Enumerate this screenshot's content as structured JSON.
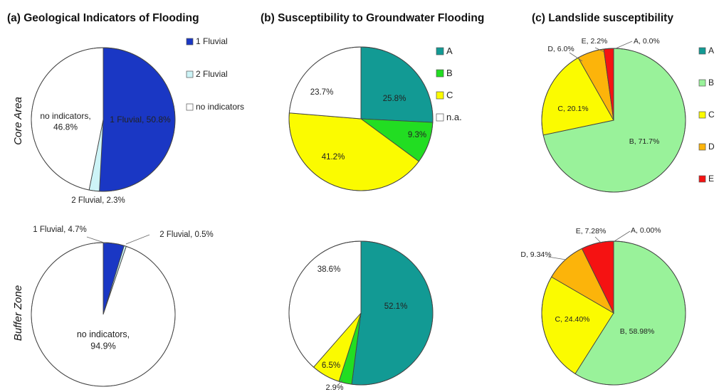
{
  "row_labels": [
    "Core Area",
    "Buffer Zone"
  ],
  "colors": {
    "fluvial1": "#1a37c4",
    "fluvial2": "#cdf4f7",
    "none": "#ffffff",
    "A": "#129a94",
    "B": "#22dd22",
    "C": "#fbfb00",
    "na": "#ffffff",
    "LA": "#129a94",
    "LB": "#99f29a",
    "LC": "#fbfb00",
    "LD": "#fcb40a",
    "LE": "#f51212"
  },
  "chart_data": [
    {
      "id": "a",
      "type": "pie",
      "title": "(a) Geological Indicators of Flooding",
      "legend": [
        "1 Fluvial",
        "2 Fluvial",
        "no indicators"
      ],
      "legend_position": "right",
      "pies": [
        {
          "row": "Core Area",
          "slices": [
            {
              "label": "1 Fluvial",
              "value": 50.8,
              "text": "1 Fluvial, 50.8%",
              "color": "#1a37c4"
            },
            {
              "label": "2 Fluvial",
              "value": 2.3,
              "text": "2 Fluvial, 2.3%",
              "color": "#cdf4f7"
            },
            {
              "label": "no indicators",
              "value": 46.8,
              "text": "no indicators, 46.8%",
              "color": "#ffffff"
            }
          ]
        },
        {
          "row": "Buffer Zone",
          "slices": [
            {
              "label": "1 Fluvial",
              "value": 4.7,
              "text": "1 Fluvial, 4.7%",
              "color": "#1a37c4"
            },
            {
              "label": "2 Fluvial",
              "value": 0.5,
              "text": "2 Fluvial, 0.5%",
              "color": "#cdf4f7"
            },
            {
              "label": "no indicators",
              "value": 94.9,
              "text": "no indicators, 94.9%",
              "color": "#ffffff"
            }
          ]
        }
      ]
    },
    {
      "id": "b",
      "type": "pie",
      "title": "(b) Susceptibility to Groundwater Flooding",
      "legend": [
        "A",
        "B",
        "C",
        "n.a."
      ],
      "legend_position": "right",
      "pies": [
        {
          "row": "Core Area",
          "slices": [
            {
              "label": "A",
              "value": 25.8,
              "text": "25.8%",
              "color": "#129a94"
            },
            {
              "label": "B",
              "value": 9.3,
              "text": "9.3%",
              "color": "#22dd22"
            },
            {
              "label": "C",
              "value": 41.2,
              "text": "41.2%",
              "color": "#fbfb00"
            },
            {
              "label": "n.a.",
              "value": 23.7,
              "text": "23.7%",
              "color": "#ffffff"
            }
          ]
        },
        {
          "row": "Buffer Zone",
          "slices": [
            {
              "label": "A",
              "value": 52.1,
              "text": "52.1%",
              "color": "#129a94"
            },
            {
              "label": "B",
              "value": 2.9,
              "text": "2.9%",
              "color": "#22dd22"
            },
            {
              "label": "C",
              "value": 6.5,
              "text": "6.5%",
              "color": "#fbfb00"
            },
            {
              "label": "n.a.",
              "value": 38.6,
              "text": "38.6%",
              "color": "#ffffff"
            }
          ]
        }
      ]
    },
    {
      "id": "c",
      "type": "pie",
      "title": "(c) Landslide susceptibility",
      "legend": [
        "A",
        "B",
        "C",
        "D",
        "E"
      ],
      "legend_position": "right",
      "pies": [
        {
          "row": "Core Area",
          "slices": [
            {
              "label": "A",
              "value": 0.0,
              "text": "A, 0.0%",
              "color": "#129a94"
            },
            {
              "label": "B",
              "value": 71.7,
              "text": "B, 71.7%",
              "color": "#99f29a"
            },
            {
              "label": "C",
              "value": 20.1,
              "text": "C, 20.1%",
              "color": "#fbfb00"
            },
            {
              "label": "D",
              "value": 6.0,
              "text": "D, 6.0%",
              "color": "#fcb40a"
            },
            {
              "label": "E",
              "value": 2.2,
              "text": "E, 2.2%",
              "color": "#f51212"
            }
          ]
        },
        {
          "row": "Buffer Zone",
          "slices": [
            {
              "label": "A",
              "value": 0.0,
              "text": "A, 0.00%",
              "color": "#129a94"
            },
            {
              "label": "B",
              "value": 58.98,
              "text": "B, 58.98%",
              "color": "#99f29a"
            },
            {
              "label": "C",
              "value": 24.4,
              "text": "C, 24.40%",
              "color": "#fbfb00"
            },
            {
              "label": "D",
              "value": 9.34,
              "text": "D, 9.34%",
              "color": "#fcb40a"
            },
            {
              "label": "E",
              "value": 7.28,
              "text": "E, 7.28%",
              "color": "#f51212"
            }
          ]
        }
      ]
    }
  ]
}
